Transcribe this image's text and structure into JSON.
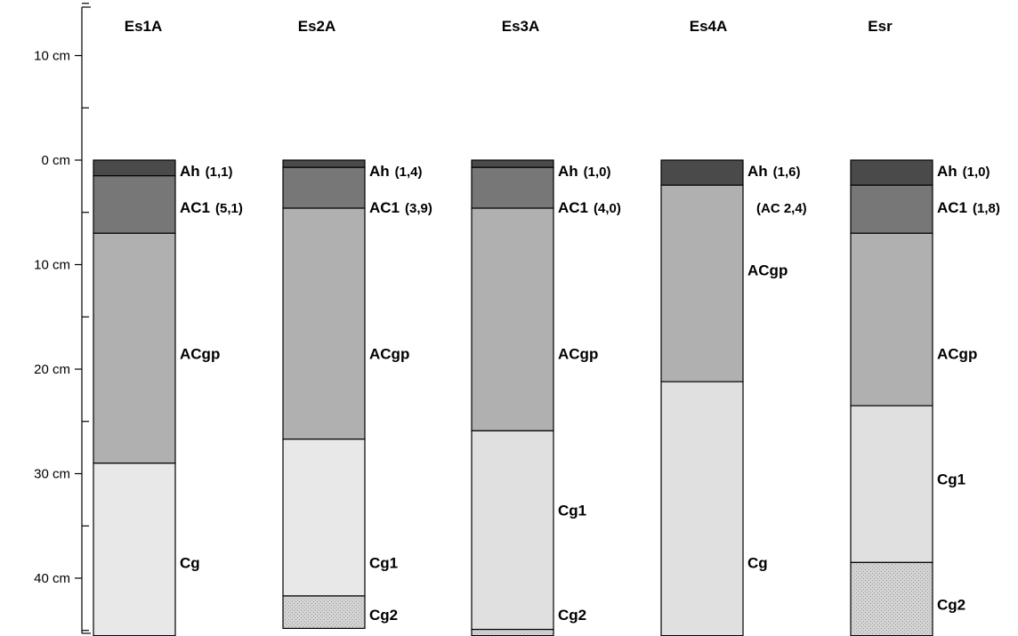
{
  "chart_data": {
    "type": "soil-profile-columns",
    "y_unit": "cm",
    "axis": {
      "ticks": [
        {
          "depth": -10,
          "label": "10 cm"
        },
        {
          "depth": 0,
          "label": "0 cm"
        },
        {
          "depth": 10,
          "label": "10 cm"
        },
        {
          "depth": 20,
          "label": "20 cm"
        },
        {
          "depth": 30,
          "label": "30 cm"
        },
        {
          "depth": 40,
          "label": "40 cm"
        }
      ],
      "minor_ticks": [
        -15,
        -5,
        5,
        15,
        25,
        35,
        45
      ]
    },
    "colors": {
      "Ah": "#4a4a4a",
      "AC1": "#777777",
      "ACgp": "#b0b0b0",
      "Cg": "#e8e8e8",
      "Cg1": "#e0e0e0",
      "Cg2": "#cfcfcf"
    },
    "profiles": [
      {
        "name": "Es1A",
        "horizons": [
          {
            "name": "Ah",
            "value": "(1,1)",
            "top": 0,
            "bottom": 1.5,
            "color": "#4a4a4a",
            "label_depth": 1
          },
          {
            "name": "AC1",
            "value": "(5,1)",
            "top": 1.5,
            "bottom": 7,
            "color": "#777777",
            "label_depth": 4.5
          },
          {
            "name": "ACgp",
            "value": "",
            "top": 7,
            "bottom": 29,
            "color": "#b0b0b0",
            "label_depth": 18.5
          },
          {
            "name": "Cg",
            "value": "",
            "top": 29,
            "bottom": 45.5,
            "color": "#e8e8e8",
            "label_depth": 38.5
          }
        ]
      },
      {
        "name": "Es2A",
        "horizons": [
          {
            "name": "Ah",
            "value": "(1,4)",
            "top": 0,
            "bottom": 0.7,
            "color": "#4a4a4a",
            "label_depth": 1
          },
          {
            "name": "AC1",
            "value": "(3,9)",
            "top": 0.7,
            "bottom": 4.6,
            "color": "#777777",
            "label_depth": 4.5
          },
          {
            "name": "ACgp",
            "value": "",
            "top": 4.6,
            "bottom": 26.7,
            "color": "#b0b0b0",
            "label_depth": 18.5
          },
          {
            "name": "Cg1",
            "value": "",
            "top": 26.7,
            "bottom": 41.7,
            "color": "#e8e8e8",
            "label_depth": 38.5
          },
          {
            "name": "Cg2",
            "value": "",
            "top": 41.7,
            "bottom": 44.8,
            "color": "#cfcfcf",
            "label_depth": 43.5,
            "stipple": true
          }
        ]
      },
      {
        "name": "Es3A",
        "horizons": [
          {
            "name": "Ah",
            "value": "(1,0)",
            "top": 0,
            "bottom": 0.7,
            "color": "#4a4a4a",
            "label_depth": 1
          },
          {
            "name": "AC1",
            "value": "(4,0)",
            "top": 0.7,
            "bottom": 4.6,
            "color": "#777777",
            "label_depth": 4.5
          },
          {
            "name": "ACgp",
            "value": "",
            "top": 4.6,
            "bottom": 25.9,
            "color": "#b0b0b0",
            "label_depth": 18.5
          },
          {
            "name": "Cg1",
            "value": "",
            "top": 25.9,
            "bottom": 44.9,
            "color": "#e0e0e0",
            "label_depth": 33.5
          },
          {
            "name": "Cg2",
            "value": "",
            "top": 44.9,
            "bottom": 45.5,
            "color": "#cfcfcf",
            "label_depth": 43.5,
            "stipple": true
          }
        ]
      },
      {
        "name": "Es4A",
        "horizons": [
          {
            "name": "Ah",
            "value": "(1,6)",
            "top": 0,
            "bottom": 2.4,
            "color": "#4a4a4a",
            "label_depth": 1
          },
          {
            "name": "",
            "value": "(AC 2,4)",
            "top": 2.4,
            "bottom": 2.4,
            "color": "#777777",
            "label_depth": 4.5,
            "value_only": true
          },
          {
            "name": "ACgp",
            "value": "",
            "top": 2.4,
            "bottom": 21.2,
            "color": "#b0b0b0",
            "label_depth": 10.5
          },
          {
            "name": "Cg",
            "value": "",
            "top": 21.2,
            "bottom": 45.5,
            "color": "#e0e0e0",
            "label_depth": 38.5
          }
        ]
      },
      {
        "name": "Esr",
        "horizons": [
          {
            "name": "Ah",
            "value": "(1,0)",
            "top": 0,
            "bottom": 2.4,
            "color": "#4a4a4a",
            "label_depth": 1
          },
          {
            "name": "AC1",
            "value": "(1,8)",
            "top": 2.4,
            "bottom": 7,
            "color": "#777777",
            "label_depth": 4.5
          },
          {
            "name": "ACgp",
            "value": "",
            "top": 7,
            "bottom": 23.5,
            "color": "#b0b0b0",
            "label_depth": 18.5
          },
          {
            "name": "Cg1",
            "value": "",
            "top": 23.5,
            "bottom": 38.5,
            "color": "#e0e0e0",
            "label_depth": 30.5
          },
          {
            "name": "Cg2",
            "value": "",
            "top": 38.5,
            "bottom": 45.5,
            "color": "#cfcfcf",
            "label_depth": 42.5,
            "stipple": true
          }
        ]
      }
    ]
  }
}
